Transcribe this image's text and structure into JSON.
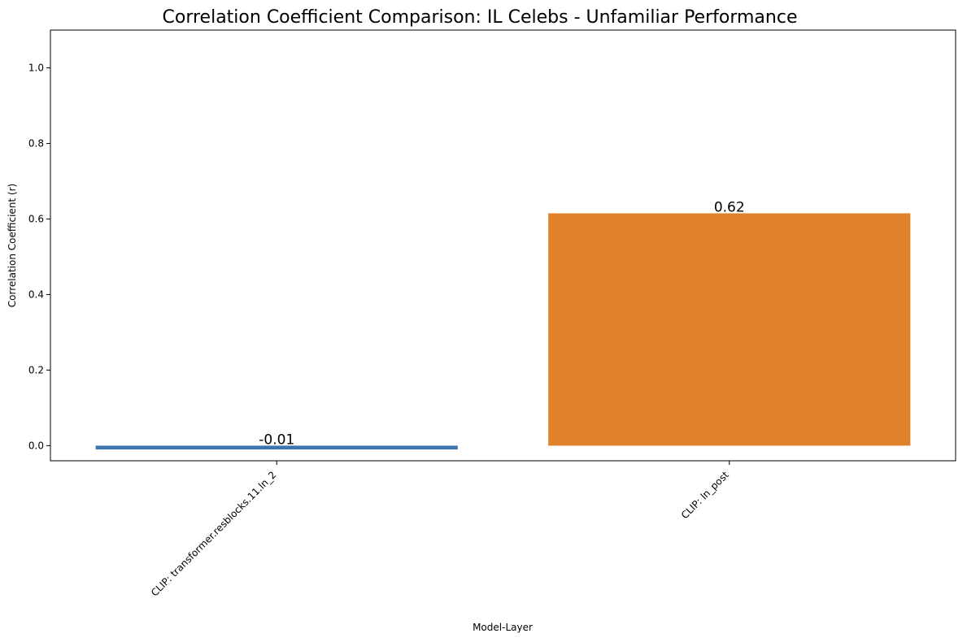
{
  "chart_data": {
    "type": "bar",
    "title": "Correlation Coefficient Comparison: IL Celebs - Unfamiliar Performance",
    "xlabel": "Model-Layer",
    "ylabel": "Correlation Coefficient (r)",
    "categories": [
      "CLIP: transformer.resblocks.11.ln_2",
      "CLIP: ln_post"
    ],
    "values": [
      -0.01,
      0.615
    ],
    "data_labels": [
      "-0.01",
      "0.62"
    ],
    "colors": [
      "#3a75af",
      "#e0822c"
    ],
    "ylim": [
      -0.04,
      1.1
    ],
    "yticks": [
      0.0,
      0.2,
      0.4,
      0.6,
      0.8,
      1.0
    ],
    "ytick_labels": [
      "0.0",
      "0.2",
      "0.4",
      "0.6",
      "0.8",
      "1.0"
    ],
    "grid": false,
    "legend": "none"
  }
}
